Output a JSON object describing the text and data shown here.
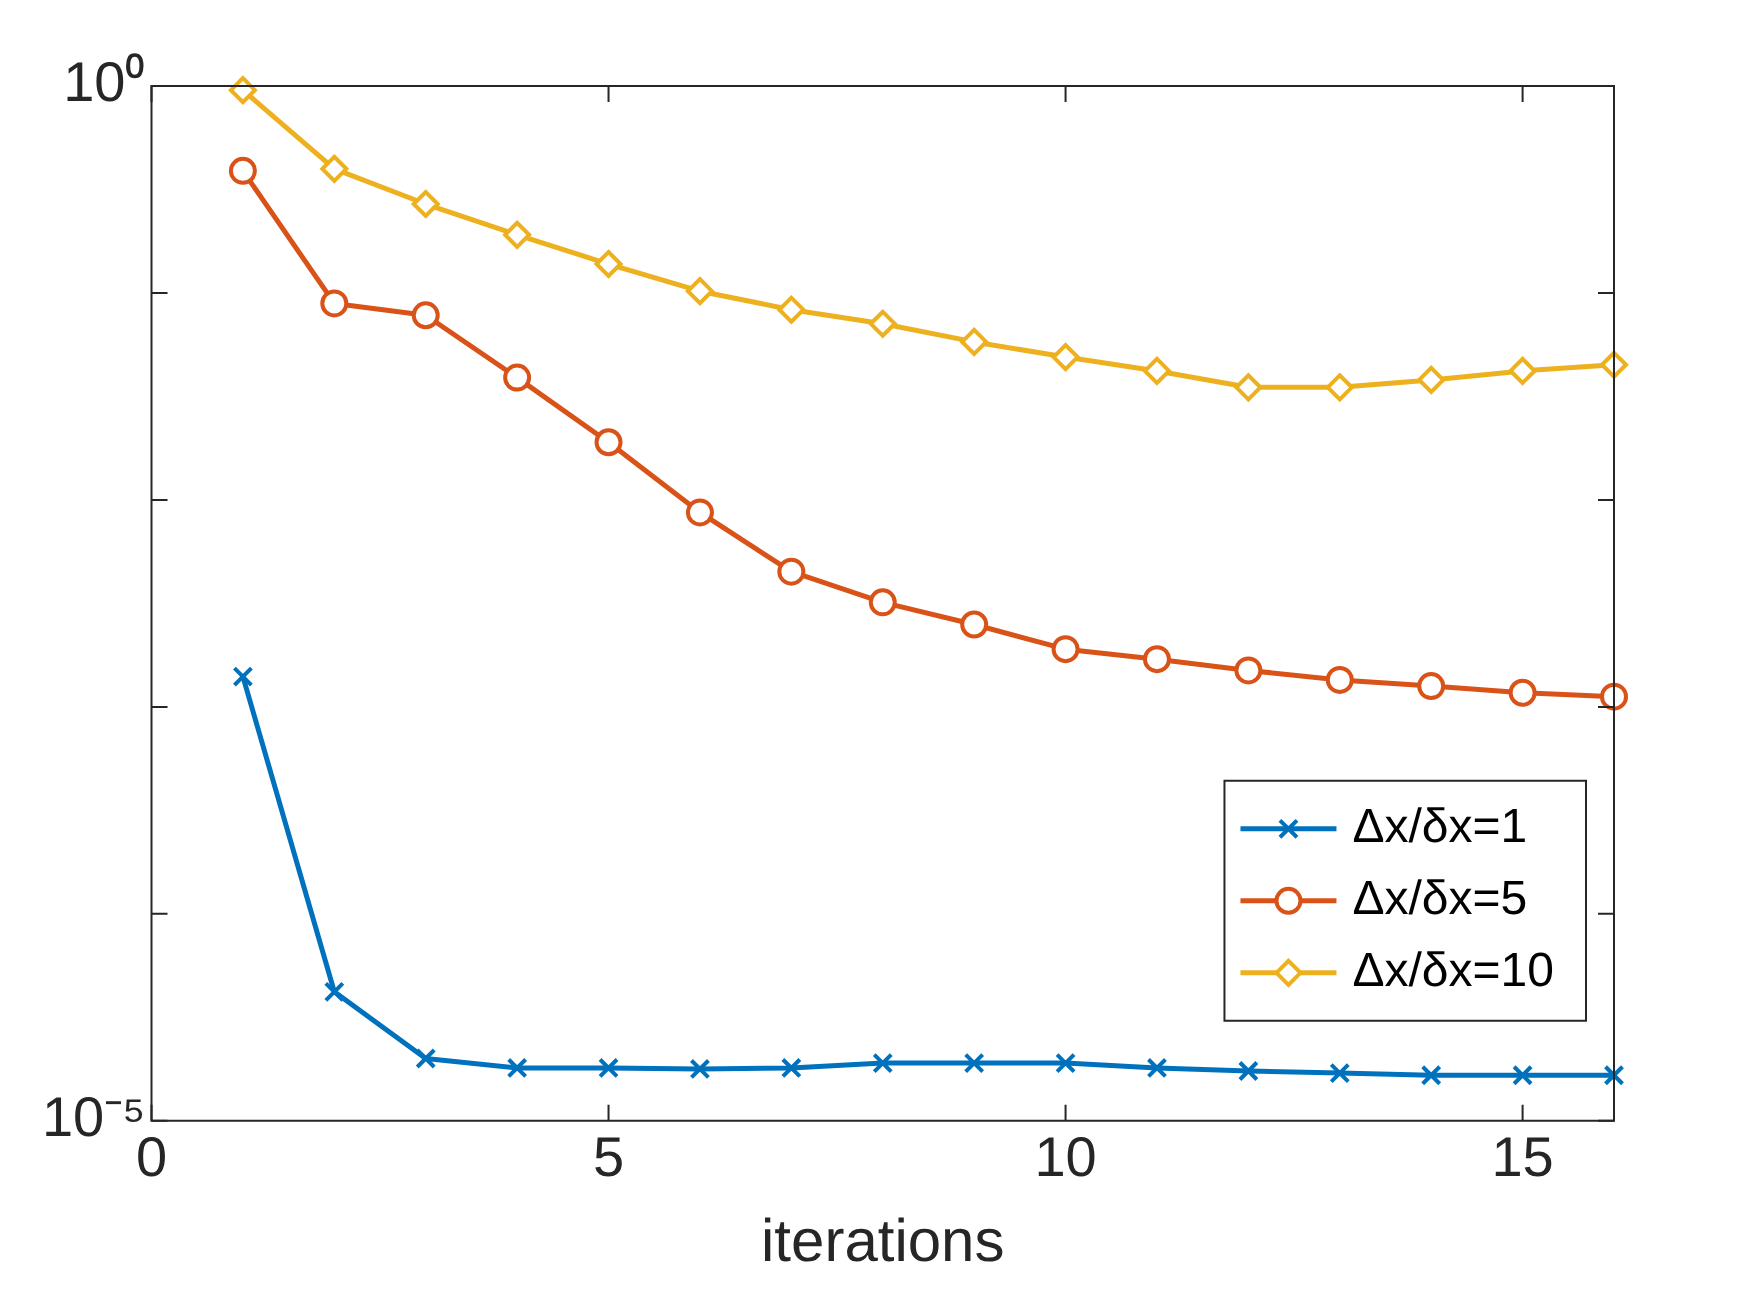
{
  "chart_data": {
    "type": "line",
    "xlabel": "iterations",
    "xlim": [
      0,
      16
    ],
    "xticks": [
      0,
      5,
      10,
      15
    ],
    "ylim": [
      1e-05,
      1
    ],
    "log": "y",
    "yticks": [
      {
        "value": 1e-05,
        "label": "10⁻⁵"
      },
      {
        "value": 0.0001,
        "label": null
      },
      {
        "value": 0.001,
        "label": null
      },
      {
        "value": 0.01,
        "label": null
      },
      {
        "value": 0.1,
        "label": null
      },
      {
        "value": 1,
        "label": "10⁰"
      }
    ],
    "grid": false,
    "legend": "bottom right",
    "line_style": "solid",
    "x": [
      1,
      2,
      3,
      4,
      5,
      6,
      7,
      8,
      9,
      10,
      11,
      12,
      13,
      14,
      15,
      16
    ],
    "series": [
      {
        "name": "Δx/δx=1",
        "color": "#0072bd",
        "marker": "cross",
        "values": [
          0.0014,
          4.2e-05,
          2e-05,
          1.8e-05,
          1.8e-05,
          1.78e-05,
          1.8e-05,
          1.9e-05,
          1.9e-05,
          1.9e-05,
          1.8e-05,
          1.74e-05,
          1.7e-05,
          1.66e-05,
          1.66e-05,
          1.66e-05
        ]
      },
      {
        "name": "Δx/δx=5",
        "color": "#d95319",
        "marker": "circle",
        "values": [
          0.389,
          0.089,
          0.078,
          0.039,
          0.019,
          0.0087,
          0.0045,
          0.0032,
          0.0025,
          0.0019,
          0.0017,
          0.0015,
          0.00135,
          0.00126,
          0.00117,
          0.00112
        ]
      },
      {
        "name": "Δx/δx=10",
        "color": "#edb120",
        "marker": "diamond",
        "values": [
          0.955,
          0.398,
          0.269,
          0.191,
          0.138,
          0.102,
          0.083,
          0.071,
          0.058,
          0.049,
          0.042,
          0.035,
          0.035,
          0.038,
          0.042,
          0.045
        ]
      }
    ]
  }
}
